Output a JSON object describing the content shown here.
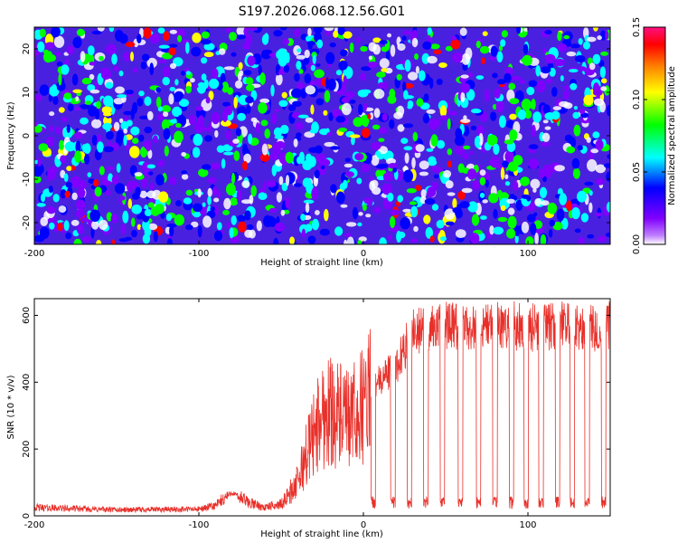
{
  "title": "S197.2026.068.12.56.G01",
  "chart_data": [
    {
      "type": "heatmap",
      "xlabel": "Height of straight line (km)",
      "ylabel": "Frequency (Hz)",
      "xlim": [
        -200,
        150
      ],
      "ylim": [
        -25,
        25
      ],
      "x_ticks": [
        -200,
        -100,
        0,
        100
      ],
      "x_tick_labels": [
        "-200",
        "-100",
        "0",
        "100"
      ],
      "y_ticks": [
        -20,
        -10,
        0,
        10,
        20
      ],
      "y_tick_labels": [
        "-20",
        "-10",
        "0",
        "10",
        "20"
      ],
      "value_range": [
        0.0,
        0.15
      ],
      "pattern": "random speckle of small blobs, mean amplitude about 0.04",
      "colorbar": {
        "label": "Normalized spectral amplitude",
        "ticks": [
          0.0,
          0.05,
          0.1,
          0.15
        ],
        "tick_labels": [
          "0.00",
          "0.05",
          "0.10",
          "0.15"
        ],
        "colormap": [
          "#ffffff",
          "#8000ff",
          "#0000ff",
          "#00ffff",
          "#00ff00",
          "#ffff00",
          "#ff8000",
          "#ff0000",
          "#ff1080"
        ]
      }
    },
    {
      "type": "line",
      "xlabel": "Height of straight line (km)",
      "ylabel": "SNR (10 * v/v)",
      "xlim": [
        -200,
        150
      ],
      "ylim": [
        0,
        650
      ],
      "x_ticks": [
        -200,
        -100,
        0,
        100
      ],
      "x_tick_labels": [
        "-200",
        "-100",
        "0",
        "100"
      ],
      "y_ticks": [
        0,
        200,
        400,
        600
      ],
      "y_tick_labels": [
        "0",
        "200",
        "400",
        "600"
      ],
      "series": [
        {
          "name": "SNR",
          "color": "#e8302a",
          "x": [
            -200,
            -150,
            -100,
            -90,
            -80,
            -70,
            -60,
            -50,
            -40,
            -35,
            -30,
            -25,
            -20,
            -15,
            -10,
            -5,
            0,
            5,
            10,
            15,
            20,
            25,
            30,
            40,
            50,
            60,
            70,
            80,
            90,
            100,
            110,
            120,
            130,
            140,
            150
          ],
          "values": [
            25,
            18,
            20,
            30,
            70,
            40,
            25,
            35,
            100,
            180,
            250,
            300,
            320,
            300,
            280,
            300,
            330,
            380,
            400,
            430,
            450,
            500,
            550,
            560,
            570,
            560,
            565,
            575,
            570,
            565,
            560,
            570,
            565,
            560,
            570
          ]
        }
      ],
      "dropouts": {
        "x": [
          6,
          18,
          28,
          38,
          48,
          59,
          70,
          80,
          90,
          99,
          108,
          118,
          127,
          136,
          146
        ],
        "value": 40
      }
    }
  ]
}
